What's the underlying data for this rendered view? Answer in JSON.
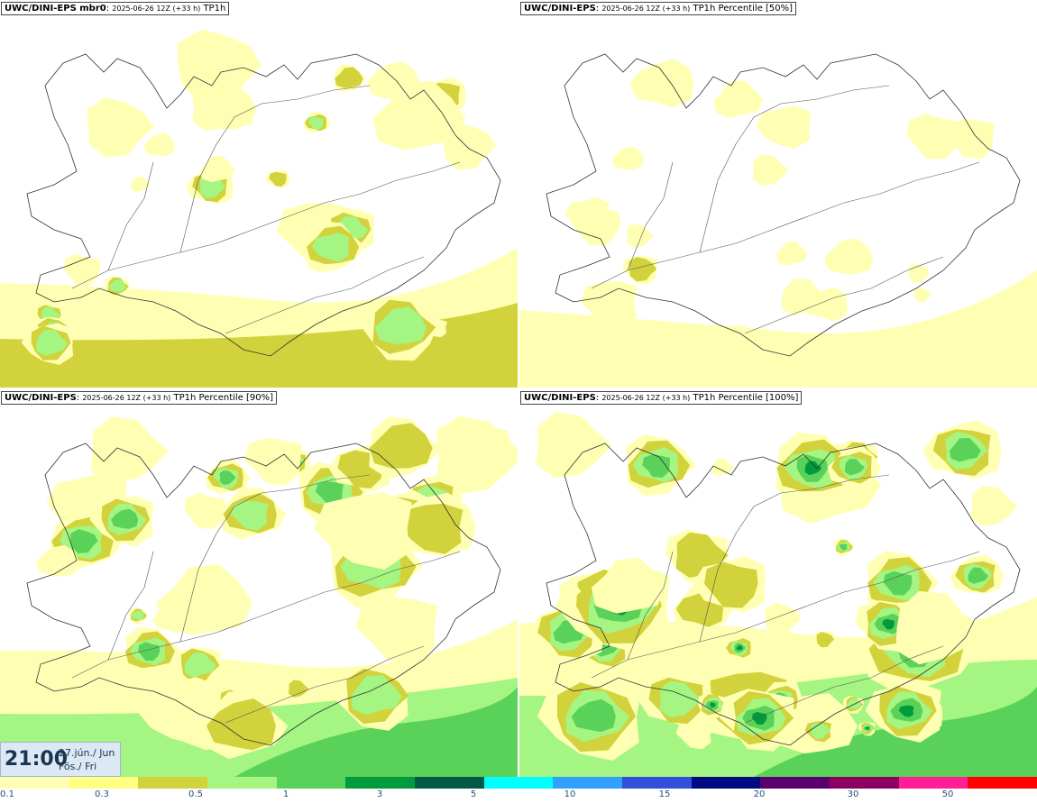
{
  "panels": [
    {
      "id": "p1",
      "title_bold": "UWC/DINI-EPS mbr0",
      "title_time": "2025-06-26 12Z (+33 h)",
      "title_rest": "TP1h",
      "intensity": 0.55
    },
    {
      "id": "p2",
      "title_bold": "UWC/DINI-EPS",
      "title_time": "2025-06-26 12Z (+33 h)",
      "title_rest": "TP1h Percentile [50%]",
      "intensity": 0.3
    },
    {
      "id": "p3",
      "title_bold": "UWC/DINI-EPS",
      "title_time": "2025-06-26 12Z (+33 h)",
      "title_rest": "TP1h Percentile [90%]",
      "intensity": 0.75
    },
    {
      "id": "p4",
      "title_bold": "UWC/DINI-EPS",
      "title_time": "2025-06-26 12Z (+33 h)",
      "title_rest": "TP1h Percentile [100%]",
      "intensity": 1.0
    }
  ],
  "valid_time": {
    "time": "21:00",
    "date_line1": "27.jún./ Jun",
    "date_line2": "Fös./ Fri"
  },
  "colorbar": {
    "colors": [
      "#ffffb4",
      "#ffff82",
      "#d2d23c",
      "#a5f582",
      "#5ad25a",
      "#009b3c",
      "#005a46",
      "#00ffff",
      "#32a0ff",
      "#3250dc",
      "#000a82",
      "#5a006e",
      "#8c0064",
      "#ff1e96",
      "#ff0000"
    ],
    "ticks": [
      "0.1",
      "0.3",
      "0.5",
      "1",
      "3",
      "5",
      "10",
      "15",
      "20",
      "30",
      "50"
    ]
  }
}
